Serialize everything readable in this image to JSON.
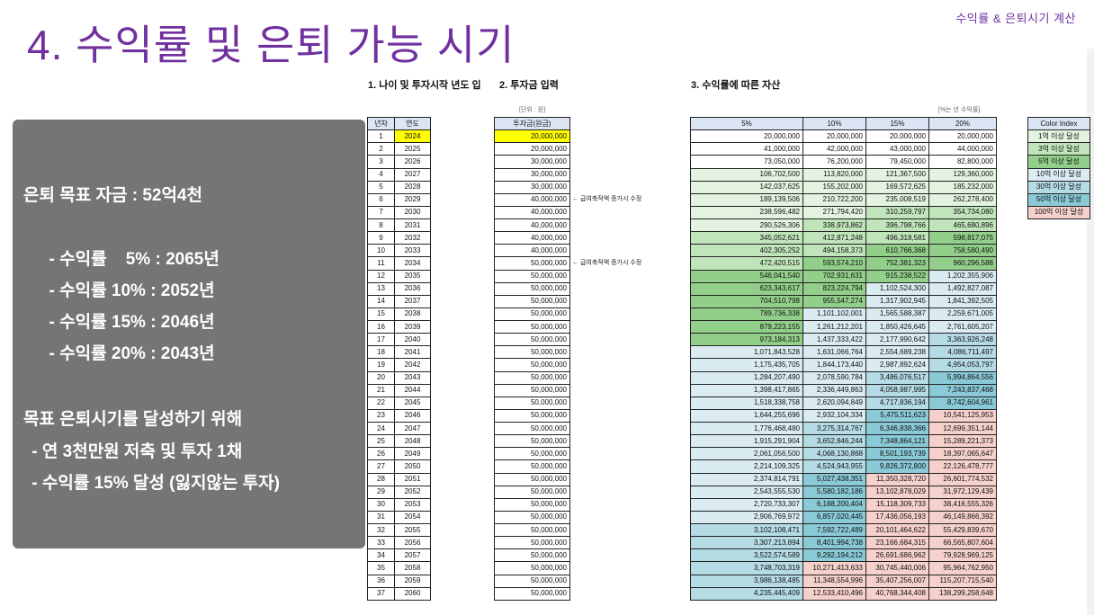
{
  "header": {
    "title": "4. 수익률 및 은퇴 가능 시기",
    "top_right": "수익률 & 은퇴시기 계산",
    "section1": "1. 나이 및 투자시작 년도 입",
    "section2": "2. 투자금 입력",
    "section3": "3. 수익률에 따른 자산",
    "unit_note": "[단위 : 원]",
    "rate_note": "[%는 년 수익률]"
  },
  "summary": {
    "goal": "은퇴 목표 자금 : 52억4천",
    "rate5": "  - 수익률    5% : 2065년",
    "rate10": "  - 수익률 10% : 2052년",
    "rate15": "  - 수익률 15% : 2046년",
    "rate20": "  - 수익률 20% : 2043년",
    "plan_title": "목표 은퇴시기를 달성하기 위해",
    "plan1": " - 연 3천만원 저축 및 투자 1채",
    "plan2": " - 수익률 15% 달성 (잃지않는 투자)"
  },
  "notes": {
    "salary_increase_1": "← 급여축적액 증가시 수정",
    "salary_increase_2": "← 급여축적액 증가시 수정"
  },
  "left_table": {
    "headers": [
      "년차",
      "연도"
    ],
    "rows": [
      [
        "1",
        "2024"
      ],
      [
        "2",
        "2025"
      ],
      [
        "3",
        "2026"
      ],
      [
        "4",
        "2027"
      ],
      [
        "5",
        "2028"
      ],
      [
        "6",
        "2029"
      ],
      [
        "7",
        "2030"
      ],
      [
        "8",
        "2031"
      ],
      [
        "9",
        "2032"
      ],
      [
        "10",
        "2033"
      ],
      [
        "11",
        "2034"
      ],
      [
        "12",
        "2035"
      ],
      [
        "13",
        "2036"
      ],
      [
        "14",
        "2037"
      ],
      [
        "15",
        "2038"
      ],
      [
        "16",
        "2039"
      ],
      [
        "17",
        "2040"
      ],
      [
        "18",
        "2041"
      ],
      [
        "19",
        "2042"
      ],
      [
        "20",
        "2043"
      ],
      [
        "21",
        "2044"
      ],
      [
        "22",
        "2045"
      ],
      [
        "23",
        "2046"
      ],
      [
        "24",
        "2047"
      ],
      [
        "25",
        "2048"
      ],
      [
        "26",
        "2049"
      ],
      [
        "27",
        "2050"
      ],
      [
        "28",
        "2051"
      ],
      [
        "29",
        "2052"
      ],
      [
        "30",
        "2053"
      ],
      [
        "31",
        "2054"
      ],
      [
        "32",
        "2055"
      ],
      [
        "33",
        "2056"
      ],
      [
        "34",
        "2057"
      ],
      [
        "35",
        "2058"
      ],
      [
        "36",
        "2059"
      ],
      [
        "37",
        "2060"
      ]
    ]
  },
  "invest_table": {
    "header": "투자금(원금)",
    "values": [
      "20,000,000",
      "20,000,000",
      "30,000,000",
      "30,000,000",
      "30,000,000",
      "40,000,000",
      "40,000,000",
      "40,000,000",
      "40,000,000",
      "40,000,000",
      "50,000,000",
      "50,000,000",
      "50,000,000",
      "50,000,000",
      "50,000,000",
      "50,000,000",
      "50,000,000",
      "50,000,000",
      "50,000,000",
      "50,000,000",
      "50,000,000",
      "50,000,000",
      "50,000,000",
      "50,000,000",
      "50,000,000",
      "50,000,000",
      "50,000,000",
      "50,000,000",
      "50,000,000",
      "50,000,000",
      "50,000,000",
      "50,000,000",
      "50,000,000",
      "50,000,000",
      "50,000,000",
      "50,000,000",
      "50,000,000"
    ]
  },
  "asset_table": {
    "headers": [
      "5%",
      "10%",
      "15%",
      "20%"
    ],
    "rows": [
      [
        "20,000,000",
        "20,000,000",
        "20,000,000",
        "20,000,000"
      ],
      [
        "41,000,000",
        "42,000,000",
        "43,000,000",
        "44,000,000"
      ],
      [
        "73,050,000",
        "76,200,000",
        "79,450,000",
        "82,800,000"
      ],
      [
        "106,702,500",
        "113,820,000",
        "121,367,500",
        "129,360,000"
      ],
      [
        "142,037,625",
        "155,202,000",
        "169,572,625",
        "185,232,000"
      ],
      [
        "189,139,506",
        "210,722,200",
        "235,008,519",
        "262,278,400"
      ],
      [
        "238,596,482",
        "271,794,420",
        "310,259,797",
        "354,734,080"
      ],
      [
        "290,526,306",
        "338,973,862",
        "396,798,766",
        "465,680,896"
      ],
      [
        "345,052,621",
        "412,871,248",
        "496,318,581",
        "598,817,075"
      ],
      [
        "402,305,252",
        "494,158,373",
        "610,766,368",
        "758,580,490"
      ],
      [
        "472,420,515",
        "593,574,210",
        "752,381,323",
        "960,296,588"
      ],
      [
        "546,041,540",
        "702,931,631",
        "915,238,522",
        "1,202,355,906"
      ],
      [
        "623,343,617",
        "823,224,794",
        "1,102,524,300",
        "1,492,827,087"
      ],
      [
        "704,510,798",
        "955,547,274",
        "1,317,902,945",
        "1,841,392,505"
      ],
      [
        "789,736,338",
        "1,101,102,001",
        "1,565,588,387",
        "2,259,671,005"
      ],
      [
        "879,223,155",
        "1,261,212,201",
        "1,850,426,645",
        "2,761,605,207"
      ],
      [
        "973,184,313",
        "1,437,333,422",
        "2,177,990,642",
        "3,363,926,248"
      ],
      [
        "1,071,843,528",
        "1,631,066,764",
        "2,554,689,238",
        "4,086,711,497"
      ],
      [
        "1,175,435,705",
        "1,844,173,440",
        "2,987,892,624",
        "4,954,053,797"
      ],
      [
        "1,284,207,490",
        "2,078,590,784",
        "3,486,076,517",
        "5,994,864,556"
      ],
      [
        "1,398,417,865",
        "2,336,449,863",
        "4,058,987,995",
        "7,243,837,468"
      ],
      [
        "1,518,338,758",
        "2,620,094,849",
        "4,717,836,194",
        "8,742,604,961"
      ],
      [
        "1,644,255,696",
        "2,932,104,334",
        "5,475,511,623",
        "10,541,125,953"
      ],
      [
        "1,776,468,480",
        "3,275,314,767",
        "6,346,838,366",
        "12,699,351,144"
      ],
      [
        "1,915,291,904",
        "3,652,846,244",
        "7,348,864,121",
        "15,289,221,373"
      ],
      [
        "2,061,056,500",
        "4,068,130,868",
        "8,501,193,739",
        "18,397,065,647"
      ],
      [
        "2,214,109,325",
        "4,524,943,955",
        "9,826,372,800",
        "22,126,478,777"
      ],
      [
        "2,374,814,791",
        "5,027,438,351",
        "11,350,328,720",
        "26,601,774,532"
      ],
      [
        "2,543,555,530",
        "5,580,182,186",
        "13,102,878,029",
        "31,972,129,439"
      ],
      [
        "2,720,733,307",
        "6,188,200,404",
        "15,118,309,733",
        "38,416,555,326"
      ],
      [
        "2,906,769,972",
        "6,857,020,445",
        "17,436,056,193",
        "46,149,866,392"
      ],
      [
        "3,102,108,471",
        "7,592,722,489",
        "20,101,464,622",
        "55,429,839,670"
      ],
      [
        "3,307,213,894",
        "8,401,994,738",
        "23,166,684,315",
        "66,565,807,604"
      ],
      [
        "3,522,574,589",
        "9,292,194,212",
        "26,691,686,962",
        "79,928,969,125"
      ],
      [
        "3,748,703,319",
        "10,271,413,633",
        "30,745,440,006",
        "95,964,762,950"
      ],
      [
        "3,986,138,485",
        "11,348,554,996",
        "35,407,256,007",
        "115,207,715,540"
      ],
      [
        "4,235,445,409",
        "12,533,410,496",
        "40,768,344,408",
        "138,299,258,648"
      ]
    ]
  },
  "legend": {
    "header": "Color Index",
    "items": [
      {
        "label": "1억 이상 달성",
        "color": "#e3f3e0"
      },
      {
        "label": "3억 이상 달성",
        "color": "#c1e5bb"
      },
      {
        "label": "5억 이상 달성",
        "color": "#92cf8a"
      },
      {
        "label": "10억 이상 달성",
        "color": "#daecf2"
      },
      {
        "label": "30억 이상 달성",
        "color": "#b5dbe5"
      },
      {
        "label": "50억 이상 달성",
        "color": "#8ac9d6"
      },
      {
        "label": "100억 이상 달성",
        "color": "#f6d0cb"
      }
    ]
  },
  "colors": {
    "title": "#7030a0",
    "highlight_yellow": "#ffff00",
    "header_blue": "#dbe5f4",
    "box_gray": "#757575"
  }
}
